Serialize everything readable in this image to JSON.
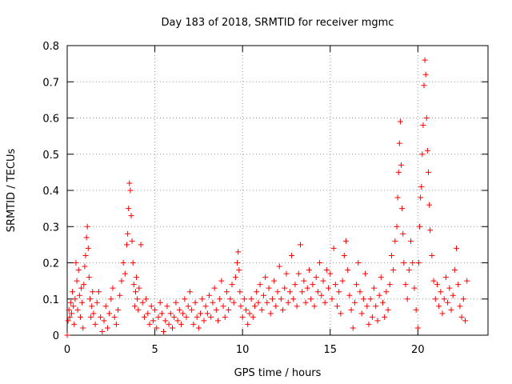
{
  "chart_data": {
    "type": "scatter",
    "title": "Day 183 of 2018, SRMTID for receiver mgmc",
    "xlabel": "GPS time / hours",
    "ylabel": "SRMTID / TECUs",
    "xlim": [
      0,
      24
    ],
    "ylim": [
      0,
      0.8
    ],
    "xticks": [
      "0",
      "5",
      "10",
      "15",
      "20"
    ],
    "yticks": [
      "0",
      "0.1",
      "0.2",
      "0.3",
      "0.4",
      "0.5",
      "0.6",
      "0.7",
      "0.8"
    ],
    "grid": true,
    "marker": "plus",
    "color": "#ff0000",
    "series": [
      {
        "name": "SRMTID",
        "points": [
          [
            0.0,
            0.0
          ],
          [
            0.05,
            0.04
          ],
          [
            0.1,
            0.07
          ],
          [
            0.15,
            0.05
          ],
          [
            0.2,
            0.09
          ],
          [
            0.25,
            0.06
          ],
          [
            0.3,
            0.12
          ],
          [
            0.35,
            0.08
          ],
          [
            0.4,
            0.03
          ],
          [
            0.45,
            0.1
          ],
          [
            0.5,
            0.2
          ],
          [
            0.55,
            0.15
          ],
          [
            0.6,
            0.07
          ],
          [
            0.65,
            0.18
          ],
          [
            0.7,
            0.11
          ],
          [
            0.75,
            0.05
          ],
          [
            0.8,
            0.13
          ],
          [
            0.85,
            0.09
          ],
          [
            0.9,
            0.02
          ],
          [
            0.95,
            0.14
          ],
          [
            1.0,
            0.19
          ],
          [
            1.05,
            0.22
          ],
          [
            1.1,
            0.27
          ],
          [
            1.15,
            0.3
          ],
          [
            1.2,
            0.24
          ],
          [
            1.25,
            0.16
          ],
          [
            1.3,
            0.1
          ],
          [
            1.35,
            0.05
          ],
          [
            1.4,
            0.08
          ],
          [
            1.45,
            0.12
          ],
          [
            1.5,
            0.06
          ],
          [
            1.6,
            0.03
          ],
          [
            1.7,
            0.09
          ],
          [
            1.8,
            0.12
          ],
          [
            1.9,
            0.05
          ],
          [
            2.0,
            0.01
          ],
          [
            2.1,
            0.04
          ],
          [
            2.2,
            0.08
          ],
          [
            2.3,
            0.02
          ],
          [
            2.4,
            0.06
          ],
          [
            2.5,
            0.1
          ],
          [
            2.6,
            0.13
          ],
          [
            2.7,
            0.05
          ],
          [
            2.8,
            0.03
          ],
          [
            2.9,
            0.07
          ],
          [
            3.0,
            0.11
          ],
          [
            3.1,
            0.15
          ],
          [
            3.2,
            0.2
          ],
          [
            3.3,
            0.17
          ],
          [
            3.4,
            0.25
          ],
          [
            3.45,
            0.28
          ],
          [
            3.5,
            0.35
          ],
          [
            3.55,
            0.42
          ],
          [
            3.6,
            0.4
          ],
          [
            3.65,
            0.33
          ],
          [
            3.7,
            0.26
          ],
          [
            3.75,
            0.2
          ],
          [
            3.8,
            0.14
          ],
          [
            3.85,
            0.08
          ],
          [
            3.9,
            0.12
          ],
          [
            3.95,
            0.16
          ],
          [
            4.0,
            0.1
          ],
          [
            4.05,
            0.07
          ],
          [
            4.1,
            0.13
          ],
          [
            4.2,
            0.25
          ],
          [
            4.3,
            0.09
          ],
          [
            4.4,
            0.05
          ],
          [
            4.5,
            0.1
          ],
          [
            4.6,
            0.06
          ],
          [
            4.7,
            0.03
          ],
          [
            4.8,
            0.08
          ],
          [
            4.9,
            0.04
          ],
          [
            5.0,
            0.07
          ],
          [
            5.1,
            0.02
          ],
          [
            5.2,
            0.05
          ],
          [
            5.3,
            0.09
          ],
          [
            5.4,
            0.06
          ],
          [
            5.5,
            0.01
          ],
          [
            5.6,
            0.04
          ],
          [
            5.7,
            0.08
          ],
          [
            5.8,
            0.03
          ],
          [
            5.9,
            0.06
          ],
          [
            6.0,
            0.02
          ],
          [
            6.1,
            0.05
          ],
          [
            6.2,
            0.09
          ],
          [
            6.3,
            0.04
          ],
          [
            6.4,
            0.07
          ],
          [
            6.5,
            0.03
          ],
          [
            6.6,
            0.06
          ],
          [
            6.7,
            0.1
          ],
          [
            6.8,
            0.05
          ],
          [
            6.9,
            0.08
          ],
          [
            7.0,
            0.12
          ],
          [
            7.1,
            0.07
          ],
          [
            7.2,
            0.03
          ],
          [
            7.3,
            0.09
          ],
          [
            7.4,
            0.05
          ],
          [
            7.5,
            0.02
          ],
          [
            7.6,
            0.06
          ],
          [
            7.7,
            0.1
          ],
          [
            7.8,
            0.04
          ],
          [
            7.9,
            0.08
          ],
          [
            8.0,
            0.06
          ],
          [
            8.1,
            0.11
          ],
          [
            8.2,
            0.05
          ],
          [
            8.3,
            0.09
          ],
          [
            8.4,
            0.13
          ],
          [
            8.5,
            0.07
          ],
          [
            8.6,
            0.04
          ],
          [
            8.7,
            0.1
          ],
          [
            8.8,
            0.15
          ],
          [
            8.9,
            0.08
          ],
          [
            9.0,
            0.05
          ],
          [
            9.1,
            0.12
          ],
          [
            9.2,
            0.07
          ],
          [
            9.3,
            0.1
          ],
          [
            9.4,
            0.14
          ],
          [
            9.5,
            0.09
          ],
          [
            9.6,
            0.16
          ],
          [
            9.7,
            0.2
          ],
          [
            9.75,
            0.23
          ],
          [
            9.8,
            0.18
          ],
          [
            9.85,
            0.12
          ],
          [
            9.9,
            0.08
          ],
          [
            10.0,
            0.05
          ],
          [
            10.1,
            0.1
          ],
          [
            10.2,
            0.07
          ],
          [
            10.3,
            0.03
          ],
          [
            10.4,
            0.06
          ],
          [
            10.5,
            0.1
          ],
          [
            10.6,
            0.05
          ],
          [
            10.7,
            0.08
          ],
          [
            10.8,
            0.12
          ],
          [
            10.9,
            0.09
          ],
          [
            11.0,
            0.14
          ],
          [
            11.1,
            0.07
          ],
          [
            11.2,
            0.11
          ],
          [
            11.3,
            0.16
          ],
          [
            11.4,
            0.09
          ],
          [
            11.5,
            0.13
          ],
          [
            11.6,
            0.06
          ],
          [
            11.7,
            0.1
          ],
          [
            11.8,
            0.15
          ],
          [
            11.9,
            0.08
          ],
          [
            12.0,
            0.12
          ],
          [
            12.1,
            0.19
          ],
          [
            12.2,
            0.1
          ],
          [
            12.3,
            0.07
          ],
          [
            12.4,
            0.13
          ],
          [
            12.5,
            0.17
          ],
          [
            12.6,
            0.09
          ],
          [
            12.7,
            0.12
          ],
          [
            12.8,
            0.22
          ],
          [
            12.9,
            0.1
          ],
          [
            13.0,
            0.14
          ],
          [
            13.1,
            0.08
          ],
          [
            13.2,
            0.17
          ],
          [
            13.3,
            0.25
          ],
          [
            13.4,
            0.12
          ],
          [
            13.5,
            0.15
          ],
          [
            13.6,
            0.09
          ],
          [
            13.7,
            0.13
          ],
          [
            13.8,
            0.18
          ],
          [
            13.9,
            0.1
          ],
          [
            14.0,
            0.14
          ],
          [
            14.1,
            0.08
          ],
          [
            14.2,
            0.16
          ],
          [
            14.3,
            0.12
          ],
          [
            14.4,
            0.2
          ],
          [
            14.5,
            0.11
          ],
          [
            14.6,
            0.15
          ],
          [
            14.7,
            0.09
          ],
          [
            14.8,
            0.18
          ],
          [
            14.9,
            0.13
          ],
          [
            15.0,
            0.17
          ],
          [
            15.1,
            0.1
          ],
          [
            15.2,
            0.24
          ],
          [
            15.3,
            0.14
          ],
          [
            15.4,
            0.08
          ],
          [
            15.5,
            0.12
          ],
          [
            15.6,
            0.06
          ],
          [
            15.7,
            0.15
          ],
          [
            15.8,
            0.22
          ],
          [
            15.9,
            0.26
          ],
          [
            16.0,
            0.18
          ],
          [
            16.1,
            0.11
          ],
          [
            16.2,
            0.07
          ],
          [
            16.3,
            0.02
          ],
          [
            16.4,
            0.09
          ],
          [
            16.5,
            0.14
          ],
          [
            16.6,
            0.2
          ],
          [
            16.7,
            0.12
          ],
          [
            16.8,
            0.06
          ],
          [
            16.9,
            0.1
          ],
          [
            17.0,
            0.17
          ],
          [
            17.1,
            0.08
          ],
          [
            17.2,
            0.03
          ],
          [
            17.3,
            0.1
          ],
          [
            17.4,
            0.05
          ],
          [
            17.5,
            0.13
          ],
          [
            17.6,
            0.08
          ],
          [
            17.7,
            0.04
          ],
          [
            17.8,
            0.11
          ],
          [
            17.9,
            0.16
          ],
          [
            18.0,
            0.09
          ],
          [
            18.1,
            0.05
          ],
          [
            18.2,
            0.12
          ],
          [
            18.3,
            0.07
          ],
          [
            18.4,
            0.14
          ],
          [
            18.5,
            0.22
          ],
          [
            18.6,
            0.18
          ],
          [
            18.7,
            0.26
          ],
          [
            18.8,
            0.3
          ],
          [
            18.85,
            0.38
          ],
          [
            18.9,
            0.45
          ],
          [
            18.95,
            0.53
          ],
          [
            19.0,
            0.59
          ],
          [
            19.05,
            0.47
          ],
          [
            19.1,
            0.35
          ],
          [
            19.15,
            0.28
          ],
          [
            19.2,
            0.2
          ],
          [
            19.3,
            0.14
          ],
          [
            19.4,
            0.1
          ],
          [
            19.5,
            0.18
          ],
          [
            19.6,
            0.26
          ],
          [
            19.7,
            0.2
          ],
          [
            19.8,
            0.13
          ],
          [
            19.9,
            0.07
          ],
          [
            20.0,
            0.02
          ],
          [
            20.05,
            0.2
          ],
          [
            20.1,
            0.3
          ],
          [
            20.15,
            0.38
          ],
          [
            20.2,
            0.41
          ],
          [
            20.25,
            0.5
          ],
          [
            20.3,
            0.58
          ],
          [
            20.35,
            0.69
          ],
          [
            20.4,
            0.76
          ],
          [
            20.45,
            0.72
          ],
          [
            20.5,
            0.6
          ],
          [
            20.55,
            0.51
          ],
          [
            20.6,
            0.45
          ],
          [
            20.65,
            0.36
          ],
          [
            20.7,
            0.29
          ],
          [
            20.8,
            0.22
          ],
          [
            20.9,
            0.15
          ],
          [
            21.0,
            0.1
          ],
          [
            21.1,
            0.14
          ],
          [
            21.2,
            0.08
          ],
          [
            21.3,
            0.12
          ],
          [
            21.4,
            0.06
          ],
          [
            21.5,
            0.1
          ],
          [
            21.6,
            0.16
          ],
          [
            21.7,
            0.09
          ],
          [
            21.8,
            0.13
          ],
          [
            21.9,
            0.07
          ],
          [
            22.0,
            0.11
          ],
          [
            22.1,
            0.18
          ],
          [
            22.2,
            0.24
          ],
          [
            22.3,
            0.14
          ],
          [
            22.4,
            0.08
          ],
          [
            22.5,
            0.05
          ],
          [
            22.6,
            0.1
          ],
          [
            22.7,
            0.04
          ],
          [
            22.8,
            0.15
          ]
        ]
      }
    ]
  }
}
